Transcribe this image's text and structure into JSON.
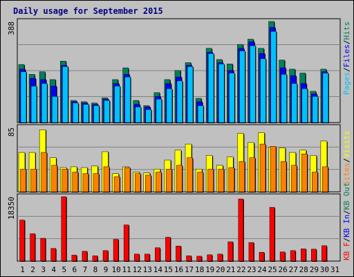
{
  "title": "Daily usage for September 2015",
  "colors": {
    "background": "#c0c0c0",
    "panel": "#c0c0c0",
    "hits": "#00805c",
    "files": "#0000ff",
    "pages": "#00c0ff",
    "visits": "#ffff00",
    "sites": "#ff8000",
    "kb_in": "#0000ff",
    "kb_out": "#00805c",
    "kb_f": "#ff0000",
    "weekend_label": "#00805c",
    "weekday_label": "#000000"
  },
  "chart_data": [
    {
      "type": "bar",
      "panel": "hits-files-pages",
      "categories": [
        "1",
        "2",
        "3",
        "4",
        "5",
        "6",
        "7",
        "8",
        "9",
        "10",
        "11",
        "12",
        "13",
        "14",
        "15",
        "16",
        "17",
        "18",
        "19",
        "20",
        "21",
        "22",
        "23",
        "24",
        "25",
        "26",
        "27",
        "28",
        "29",
        "30",
        "31"
      ],
      "ymax_label": "388",
      "ylim": [
        0,
        388
      ],
      "side_labels": [
        "Pages",
        "Files",
        "Hits"
      ],
      "series": [
        {
          "name": "Hits",
          "values": [
            223,
            185,
            195,
            165,
            236,
            85,
            80,
            75,
            95,
            165,
            210,
            85,
            65,
            115,
            165,
            200,
            230,
            93,
            285,
            242,
            225,
            300,
            320,
            285,
            388,
            240,
            205,
            190,
            120,
            205,
            0
          ]
        },
        {
          "name": "Files",
          "values": [
            205,
            170,
            165,
            140,
            220,
            80,
            75,
            70,
            90,
            150,
            185,
            70,
            60,
            100,
            150,
            175,
            220,
            80,
            270,
            230,
            200,
            285,
            310,
            265,
            365,
            210,
            180,
            150,
            110,
            195,
            0
          ]
        },
        {
          "name": "Pages",
          "values": [
            195,
            140,
            150,
            100,
            215,
            75,
            70,
            65,
            85,
            140,
            175,
            60,
            50,
            90,
            130,
            160,
            215,
            65,
            265,
            225,
            190,
            275,
            295,
            245,
            350,
            185,
            150,
            130,
            100,
            190,
            0
          ]
        }
      ]
    },
    {
      "type": "bar",
      "panel": "visits-sites",
      "categories": [
        "1",
        "2",
        "3",
        "4",
        "5",
        "6",
        "7",
        "8",
        "9",
        "10",
        "11",
        "12",
        "13",
        "14",
        "15",
        "16",
        "17",
        "18",
        "19",
        "20",
        "21",
        "22",
        "23",
        "24",
        "25",
        "26",
        "27",
        "28",
        "29",
        "30",
        "31"
      ],
      "ymax_label": "85",
      "ylim": [
        0,
        85
      ],
      "side_labels": [
        "Sites",
        "Visits"
      ],
      "series": [
        {
          "name": "Visits",
          "values": [
            52,
            52,
            82,
            45,
            32,
            33,
            32,
            34,
            53,
            24,
            33,
            26,
            25,
            30,
            42,
            55,
            63,
            30,
            48,
            35,
            46,
            77,
            65,
            78,
            59,
            58,
            52,
            55,
            48,
            67,
            0
          ]
        },
        {
          "name": "Sites",
          "values": [
            30,
            30,
            52,
            35,
            30,
            26,
            24,
            24,
            33,
            20,
            32,
            24,
            22,
            26,
            30,
            35,
            45,
            26,
            30,
            30,
            32,
            40,
            45,
            63,
            60,
            40,
            35,
            50,
            26,
            33,
            0
          ]
        }
      ]
    },
    {
      "type": "bar",
      "panel": "kbytes",
      "categories": [
        "1",
        "2",
        "3",
        "4",
        "5",
        "6",
        "7",
        "8",
        "9",
        "10",
        "11",
        "12",
        "13",
        "14",
        "15",
        "16",
        "17",
        "18",
        "19",
        "20",
        "21",
        "22",
        "23",
        "24",
        "25",
        "26",
        "27",
        "28",
        "29",
        "30",
        "31"
      ],
      "ymax_label": "18350",
      "ylim": [
        0,
        18350
      ],
      "side_labels": [
        "KB F",
        "KB In",
        "KB Out"
      ],
      "series": [
        {
          "name": "KB F",
          "values": [
            11700,
            7800,
            6500,
            3600,
            18350,
            1700,
            2800,
            1500,
            3000,
            6200,
            10300,
            2000,
            2000,
            3800,
            6800,
            4300,
            1500,
            1400,
            1800,
            2000,
            5500,
            17700,
            5300,
            2500,
            15300,
            2600,
            3000,
            3500,
            3400,
            4400,
            0
          ]
        }
      ]
    }
  ],
  "x_axis": {
    "labels": [
      "1",
      "2",
      "3",
      "4",
      "5",
      "6",
      "7",
      "8",
      "9",
      "10",
      "11",
      "12",
      "13",
      "14",
      "15",
      "16",
      "17",
      "18",
      "19",
      "20",
      "21",
      "22",
      "23",
      "24",
      "25",
      "26",
      "27",
      "28",
      "29",
      "30",
      "31"
    ],
    "weekend": [
      false,
      false,
      false,
      false,
      true,
      true,
      false,
      false,
      false,
      false,
      false,
      true,
      true,
      false,
      false,
      false,
      false,
      false,
      true,
      true,
      false,
      false,
      false,
      false,
      false,
      true,
      true,
      false,
      false,
      false,
      false
    ]
  }
}
